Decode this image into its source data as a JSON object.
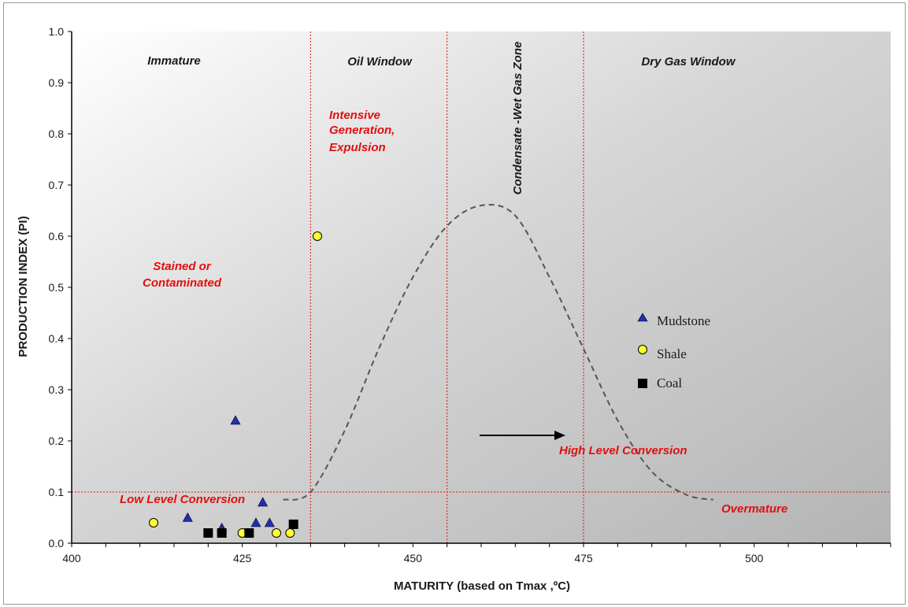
{
  "chart_data": {
    "type": "scatter",
    "xlabel": "MATURITY (based on Tmax ,ºC)",
    "ylabel": "PRODUCTION INDEX (PI)",
    "xlim": [
      400,
      520
    ],
    "ylim": [
      0,
      1
    ],
    "x_ticks": [
      "400",
      "425",
      "450",
      "475",
      "500"
    ],
    "y_ticks": [
      "0.0",
      "0.1",
      "0.2",
      "0.3",
      "0.4",
      "0.5",
      "0.6",
      "0.7",
      "0.8",
      "0.9",
      "1.0"
    ],
    "grid": false,
    "background": "gray gradient",
    "legend_position": "right-middle",
    "zone_boundaries_x": [
      435,
      455,
      475
    ],
    "pi_threshold_y": 0.1,
    "zone_labels": [
      "Immature",
      "Oil  Window",
      "Condensate -Wet Gas Zone",
      "Dry Gas Window"
    ],
    "annotations": {
      "intensive": [
        "Intensive",
        "Generation,",
        "Expulsion"
      ],
      "stained": [
        "Stained or",
        "Contaminated"
      ],
      "low_level": "Low Level Conversion",
      "high_level": "High Level Conversion",
      "overmature": "Overmature"
    },
    "curve": [
      [
        431,
        0.085
      ],
      [
        435,
        0.1
      ],
      [
        440,
        0.22
      ],
      [
        445,
        0.38
      ],
      [
        450,
        0.52
      ],
      [
        455,
        0.62
      ],
      [
        460,
        0.66
      ],
      [
        465,
        0.64
      ],
      [
        470,
        0.52
      ],
      [
        475,
        0.38
      ],
      [
        480,
        0.24
      ],
      [
        485,
        0.14
      ],
      [
        490,
        0.095
      ],
      [
        494,
        0.085
      ]
    ],
    "series": [
      {
        "name": "Mudstone",
        "marker": "triangle",
        "color": "#1f2fb5",
        "points": [
          [
            417,
            0.05
          ],
          [
            422,
            0.03
          ],
          [
            424,
            0.24
          ],
          [
            427,
            0.04
          ],
          [
            428,
            0.08
          ],
          [
            429,
            0.04
          ]
        ]
      },
      {
        "name": "Shale",
        "marker": "circle",
        "color": "#ffff33",
        "points": [
          [
            412,
            0.04
          ],
          [
            425,
            0.02
          ],
          [
            430,
            0.02
          ],
          [
            432,
            0.02
          ],
          [
            436,
            0.6
          ]
        ]
      },
      {
        "name": "Coal",
        "marker": "square",
        "color": "#000000",
        "points": [
          [
            420,
            0.02
          ],
          [
            422,
            0.02
          ],
          [
            426,
            0.02
          ],
          [
            432.5,
            0.037
          ]
        ]
      }
    ]
  }
}
